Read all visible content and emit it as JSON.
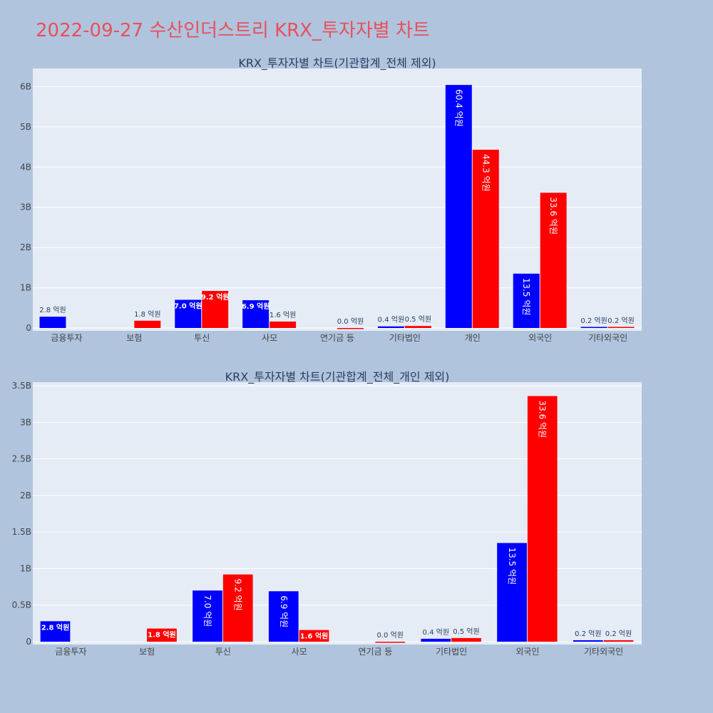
{
  "page_title": "2022-09-27 수산인더스트리 KRX_투자자별 차트",
  "colors": {
    "buy": "#0000ff",
    "sell": "#ff0000",
    "plot_bg": "#e5ecf6",
    "page_bg": "#b0c4de",
    "title": "#e8505b"
  },
  "chart_data": [
    {
      "type": "bar",
      "title": "KRX_투자자별 차트(기관합계_전체 제외)",
      "categories": [
        "금융투자",
        "보험",
        "투신",
        "사모",
        "연기금 등",
        "기타법인",
        "개인",
        "외국인",
        "기타외국인"
      ],
      "series": [
        {
          "values": [
            0.28,
            0.0,
            0.7,
            0.69,
            0.0,
            0.04,
            6.04,
            1.35,
            0.02
          ],
          "labels": [
            "2.8 억원",
            "",
            "7.0 억원",
            "6.9 억원",
            "",
            "0.4 억원",
            "60.4 억원",
            "13.5 억원",
            "0.2 억원"
          ]
        },
        {
          "values": [
            0.0,
            0.18,
            0.92,
            0.16,
            0.0,
            0.05,
            4.43,
            3.36,
            0.02
          ],
          "labels": [
            "",
            "1.8 억원",
            "9.2 억원",
            "1.6 억원",
            "0.0 억원",
            "0.5 억원",
            "44.3 억원",
            "33.6 억원",
            "0.2 억원"
          ]
        }
      ],
      "yticks": [
        "0",
        "1B",
        "2B",
        "3B",
        "4B",
        "5B",
        "6B"
      ],
      "ylim": [
        0,
        6.45
      ],
      "unit": "B"
    },
    {
      "type": "bar",
      "title": "KRX_투자자별 차트(기관합계_전체_개인 제외)",
      "categories": [
        "금융투자",
        "보험",
        "투신",
        "사모",
        "연기금 등",
        "기타법인",
        "외국인",
        "기타외국인"
      ],
      "series": [
        {
          "values": [
            0.28,
            0.0,
            0.7,
            0.69,
            0.0,
            0.04,
            1.35,
            0.02
          ],
          "labels": [
            "2.8 억원",
            "",
            "7.0 억원",
            "6.9 억원",
            "",
            "0.4 억원",
            "13.5 억원",
            "0.2 억원"
          ]
        },
        {
          "values": [
            0.0,
            0.18,
            0.92,
            0.16,
            0.0,
            0.05,
            3.36,
            0.02
          ],
          "labels": [
            "",
            "1.8 억원",
            "9.2 억원",
            "1.6 억원",
            "0.0 억원",
            "0.5 억원",
            "33.6 억원",
            "0.2 억원"
          ]
        }
      ],
      "yticks": [
        "0",
        "0.5B",
        "1B",
        "1.5B",
        "2B",
        "2.5B",
        "3B",
        "3.5B"
      ],
      "ylim": [
        0,
        3.55
      ],
      "unit": "B"
    }
  ]
}
